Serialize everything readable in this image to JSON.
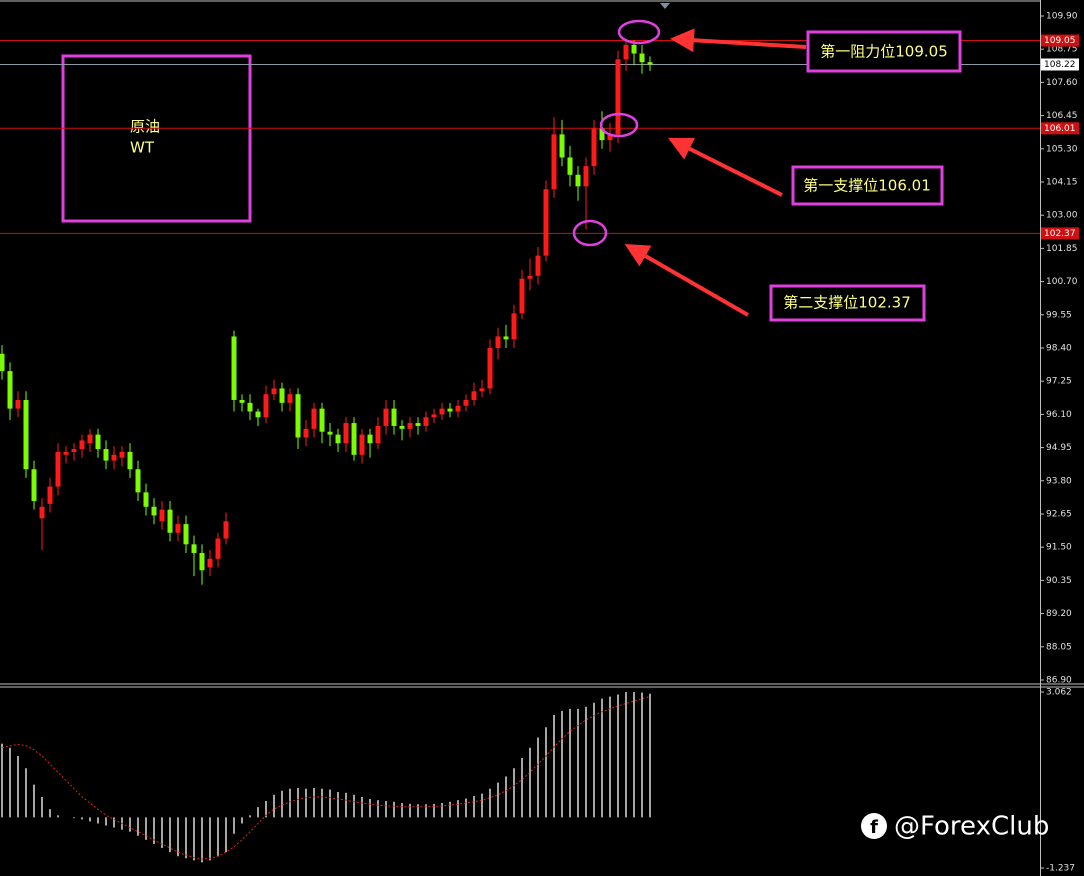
{
  "chart_data": [
    {
      "type": "candlestick",
      "categories": [
        null,
        null,
        null,
        null,
        null,
        null,
        null,
        null,
        null,
        null,
        null,
        null,
        null,
        null,
        null,
        null,
        null,
        null,
        null,
        null,
        null,
        null,
        null,
        null,
        null,
        null,
        null,
        null,
        null,
        null,
        null,
        null,
        null,
        null,
        null,
        null,
        null,
        null,
        null,
        null,
        null,
        null,
        null,
        null,
        null,
        null,
        null,
        null,
        null,
        null,
        null,
        null,
        null,
        null,
        null,
        null,
        null,
        null,
        null,
        null,
        null,
        null,
        null,
        null,
        null,
        null,
        null,
        null,
        null,
        null,
        null,
        null,
        null,
        null,
        null,
        null,
        null,
        null,
        null,
        null,
        null,
        null
      ],
      "open": [
        98.2,
        97.6,
        96.3,
        96.6,
        94.2,
        92.5,
        93.0,
        93.6,
        94.7,
        94.8,
        94.9,
        95.1,
        95.4,
        94.9,
        94.5,
        94.6,
        94.8,
        94.2,
        93.4,
        92.9,
        92.4,
        92.8,
        92.0,
        92.3,
        91.6,
        91.3,
        90.8,
        91.1,
        91.8,
        98.8,
        96.6,
        96.5,
        96.2,
        96.0,
        96.8,
        97.0,
        96.5,
        96.8,
        95.3,
        95.6,
        96.3,
        95.5,
        95.4,
        95.1,
        95.8,
        94.7,
        95.4,
        95.1,
        95.7,
        96.3,
        95.7,
        95.6,
        95.8,
        95.7,
        96.0,
        96.1,
        96.3,
        96.2,
        96.4,
        96.6,
        96.9,
        97.0,
        98.4,
        98.8,
        98.7,
        99.6,
        100.8,
        100.9,
        101.6,
        103.9,
        105.8,
        105.0,
        104.4,
        104.0,
        104.7,
        106.0,
        105.6,
        105.8,
        108.4,
        108.9,
        108.6,
        108.3
      ],
      "high": [
        98.5,
        97.9,
        96.9,
        96.9,
        94.5,
        93.2,
        93.9,
        95.1,
        95.0,
        95.1,
        95.4,
        95.6,
        95.6,
        95.2,
        95.0,
        95.0,
        95.1,
        94.5,
        93.7,
        93.2,
        93.1,
        93.1,
        92.6,
        92.6,
        91.9,
        91.6,
        91.4,
        92.0,
        92.7,
        99.0,
        96.8,
        96.8,
        96.3,
        97.1,
        97.3,
        97.2,
        97.0,
        97.0,
        95.9,
        96.5,
        96.5,
        95.8,
        95.6,
        96.0,
        96.0,
        95.6,
        95.6,
        96.0,
        96.6,
        96.6,
        95.9,
        96.0,
        96.0,
        96.2,
        96.3,
        96.5,
        96.5,
        96.6,
        96.8,
        97.2,
        97.3,
        98.7,
        99.1,
        99.2,
        99.9,
        101.1,
        101.5,
        101.9,
        104.2,
        106.4,
        106.3,
        105.4,
        104.7,
        105.0,
        106.3,
        106.6,
        106.2,
        108.7,
        109.05,
        109.05,
        108.9,
        108.5
      ],
      "low": [
        97.3,
        95.9,
        96.0,
        93.9,
        92.8,
        91.4,
        92.7,
        93.3,
        94.4,
        94.5,
        94.6,
        94.8,
        94.6,
        94.2,
        94.2,
        94.3,
        93.9,
        93.1,
        92.6,
        92.3,
        92.1,
        91.7,
        91.7,
        91.3,
        90.5,
        90.2,
        90.5,
        90.8,
        91.6,
        96.2,
        96.2,
        95.9,
        95.7,
        95.8,
        96.6,
        96.2,
        96.2,
        94.9,
        95.0,
        95.3,
        95.1,
        95.0,
        94.8,
        94.8,
        94.5,
        94.4,
        94.6,
        94.9,
        95.4,
        95.4,
        95.2,
        95.3,
        95.4,
        95.5,
        95.8,
        95.9,
        96.0,
        96.0,
        96.2,
        96.4,
        96.7,
        96.8,
        98.0,
        98.4,
        98.4,
        99.4,
        100.4,
        100.6,
        101.4,
        103.6,
        104.7,
        104.0,
        103.5,
        102.5,
        104.4,
        105.3,
        105.2,
        105.5,
        108.0,
        108.2,
        107.9,
        108.0
      ],
      "close": [
        97.6,
        96.3,
        96.6,
        94.2,
        93.1,
        92.9,
        93.6,
        94.8,
        94.8,
        94.9,
        95.2,
        95.4,
        94.9,
        94.5,
        94.7,
        94.8,
        94.2,
        93.4,
        92.9,
        92.6,
        92.8,
        92.0,
        92.3,
        91.6,
        91.3,
        90.7,
        91.1,
        91.8,
        92.4,
        96.6,
        96.5,
        96.2,
        96.0,
        96.8,
        97.0,
        96.5,
        96.8,
        95.3,
        95.6,
        96.3,
        95.5,
        95.4,
        95.1,
        95.8,
        94.7,
        95.4,
        95.1,
        95.7,
        96.3,
        95.7,
        95.6,
        95.8,
        95.7,
        96.0,
        96.1,
        96.3,
        96.2,
        96.4,
        96.6,
        96.9,
        97.0,
        98.4,
        98.8,
        98.7,
        99.6,
        100.8,
        100.9,
        101.6,
        103.9,
        105.8,
        105.0,
        104.4,
        104.0,
        104.7,
        106.0,
        105.6,
        105.8,
        108.4,
        108.9,
        108.6,
        108.3,
        108.22
      ],
      "up_color": "#ff1a1a",
      "down_color": "#7cfc00",
      "ylim": [
        86.9,
        109.9
      ],
      "yticks": [
        {
          "value": 109.9,
          "label": "109.90"
        },
        {
          "value": 108.75,
          "label": "108.75"
        },
        {
          "value": 107.6,
          "label": "107.60"
        },
        {
          "value": 106.45,
          "label": "106.45"
        },
        {
          "value": 105.3,
          "label": "105.30"
        },
        {
          "value": 104.15,
          "label": "104.15"
        },
        {
          "value": 103.0,
          "label": "103.00"
        },
        {
          "value": 101.85,
          "label": "101.85"
        },
        {
          "value": 100.7,
          "label": "100.70"
        },
        {
          "value": 99.55,
          "label": "99.55"
        },
        {
          "value": 98.4,
          "label": "98.40"
        },
        {
          "value": 97.25,
          "label": "97.25"
        },
        {
          "value": 96.1,
          "label": "96.10"
        },
        {
          "value": 94.95,
          "label": "94.95"
        },
        {
          "value": 93.8,
          "label": "93.80"
        },
        {
          "value": 92.65,
          "label": "92.65"
        },
        {
          "value": 91.5,
          "label": "91.50"
        },
        {
          "value": 90.35,
          "label": "90.35"
        },
        {
          "value": 89.2,
          "label": "89.20"
        },
        {
          "value": 88.05,
          "label": "88.05"
        },
        {
          "value": 86.9,
          "label": "86.90"
        }
      ],
      "levels": [
        {
          "value": 109.05,
          "label": "109.05",
          "color": "#d01010"
        },
        {
          "value": 108.22,
          "label": "108.22",
          "color": "#8c9aa8"
        },
        {
          "value": 106.01,
          "label": "106.01",
          "color": "#d01010"
        },
        {
          "value": 102.37,
          "label": "102.37",
          "color": "#d01010"
        }
      ],
      "annotations": [
        "第一阻力位109.05",
        "第一支撑位106.01",
        "第二支撑位102.37"
      ],
      "box_label": [
        "原油",
        "WT"
      ],
      "watermark": "@ForexClub"
    },
    {
      "type": "macd",
      "histogram": [
        1.8,
        1.7,
        1.5,
        1.2,
        0.8,
        0.5,
        0.2,
        0.05,
        0.0,
        -0.02,
        -0.05,
        -0.1,
        -0.15,
        -0.2,
        -0.25,
        -0.3,
        -0.35,
        -0.45,
        -0.55,
        -0.65,
        -0.75,
        -0.85,
        -0.95,
        -1.0,
        -1.05,
        -1.1,
        -1.05,
        -0.95,
        -0.85,
        -0.4,
        -0.15,
        0.05,
        0.25,
        0.4,
        0.55,
        0.65,
        0.7,
        0.72,
        0.7,
        0.72,
        0.7,
        0.68,
        0.62,
        0.6,
        0.55,
        0.5,
        0.45,
        0.42,
        0.4,
        0.38,
        0.35,
        0.33,
        0.32,
        0.32,
        0.33,
        0.35,
        0.38,
        0.42,
        0.46,
        0.52,
        0.58,
        0.7,
        0.85,
        1.0,
        1.2,
        1.45,
        1.7,
        1.95,
        2.2,
        2.5,
        2.6,
        2.65,
        2.65,
        2.7,
        2.8,
        2.9,
        2.95,
        3.0,
        3.06,
        3.06,
        3.05,
        3.02
      ],
      "signal": [
        1.7,
        1.75,
        1.78,
        1.75,
        1.65,
        1.5,
        1.3,
        1.1,
        0.9,
        0.7,
        0.5,
        0.35,
        0.2,
        0.05,
        -0.05,
        -0.15,
        -0.25,
        -0.35,
        -0.45,
        -0.55,
        -0.65,
        -0.75,
        -0.85,
        -0.92,
        -0.98,
        -1.02,
        -1.0,
        -0.95,
        -0.85,
        -0.72,
        -0.55,
        -0.35,
        -0.15,
        0.05,
        0.2,
        0.3,
        0.38,
        0.44,
        0.48,
        0.5,
        0.5,
        0.48,
        0.45,
        0.42,
        0.38,
        0.35,
        0.32,
        0.3,
        0.28,
        0.27,
        0.26,
        0.26,
        0.26,
        0.26,
        0.27,
        0.28,
        0.3,
        0.32,
        0.35,
        0.38,
        0.42,
        0.48,
        0.55,
        0.65,
        0.78,
        0.92,
        1.1,
        1.3,
        1.5,
        1.72,
        1.92,
        2.1,
        2.25,
        2.38,
        2.48,
        2.58,
        2.65,
        2.72,
        2.78,
        2.84,
        2.9,
        2.95
      ],
      "histogram_color": "#ffffff",
      "signal_color": "#e02020",
      "ylim": [
        -1.237,
        3.062
      ],
      "yticks": [
        3.062,
        -1.237
      ]
    }
  ]
}
